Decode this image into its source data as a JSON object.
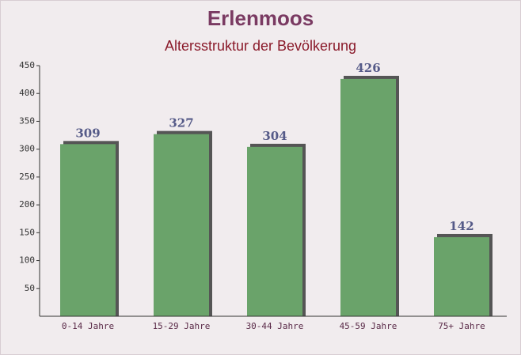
{
  "chart_data": {
    "type": "bar",
    "title": "Erlenmoos",
    "subtitle": "Altersstruktur der Bevölkerung",
    "categories": [
      "0-14 Jahre",
      "15-29 Jahre",
      "30-44 Jahre",
      "45-59 Jahre",
      "75+ Jahre"
    ],
    "values": [
      309,
      327,
      304,
      426,
      142
    ],
    "color": "#6aa36a",
    "ylim": [
      0,
      450
    ],
    "yticks": [
      50,
      100,
      150,
      200,
      250,
      300,
      350,
      400,
      450
    ]
  }
}
